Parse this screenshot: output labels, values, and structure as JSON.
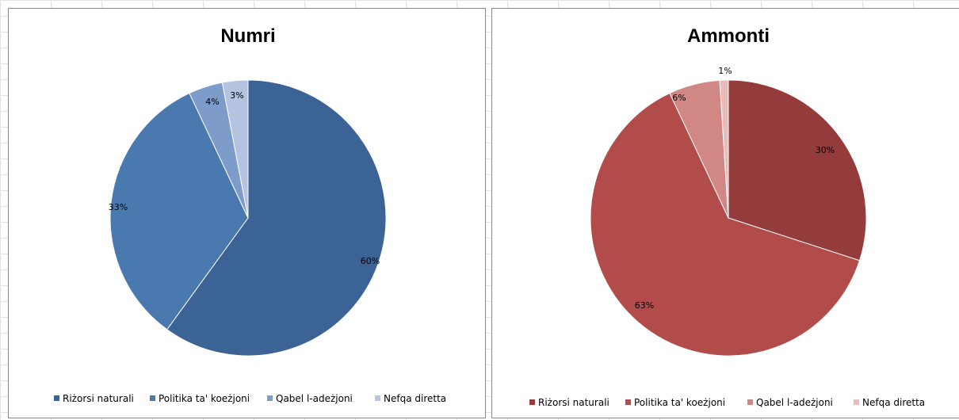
{
  "chart_data": [
    {
      "type": "pie",
      "title": "Numri",
      "categories": [
        "Riżorsi naturali",
        "Politika ta' koeżjoni",
        "Qabel l-adeżjoni",
        "Nefqa diretta"
      ],
      "values": [
        60,
        33,
        4,
        3
      ],
      "labels": [
        "60%",
        "33%",
        "4%",
        "3%"
      ],
      "colors": [
        "#3b6395",
        "#4a79af",
        "#7e9cc9",
        "#b3c3e0"
      ],
      "legend_position": "bottom"
    },
    {
      "type": "pie",
      "title": "Ammonti",
      "categories": [
        "Riżorsi naturali",
        "Politika ta' koeżjoni",
        "Qabel l-adeżjoni",
        "Nefqa diretta"
      ],
      "values": [
        30,
        63,
        6,
        1
      ],
      "labels": [
        "30%",
        "63%",
        "6%",
        "1%"
      ],
      "colors": [
        "#943c3b",
        "#b14c4a",
        "#d18784",
        "#e8bcbb"
      ],
      "legend_position": "bottom"
    }
  ]
}
